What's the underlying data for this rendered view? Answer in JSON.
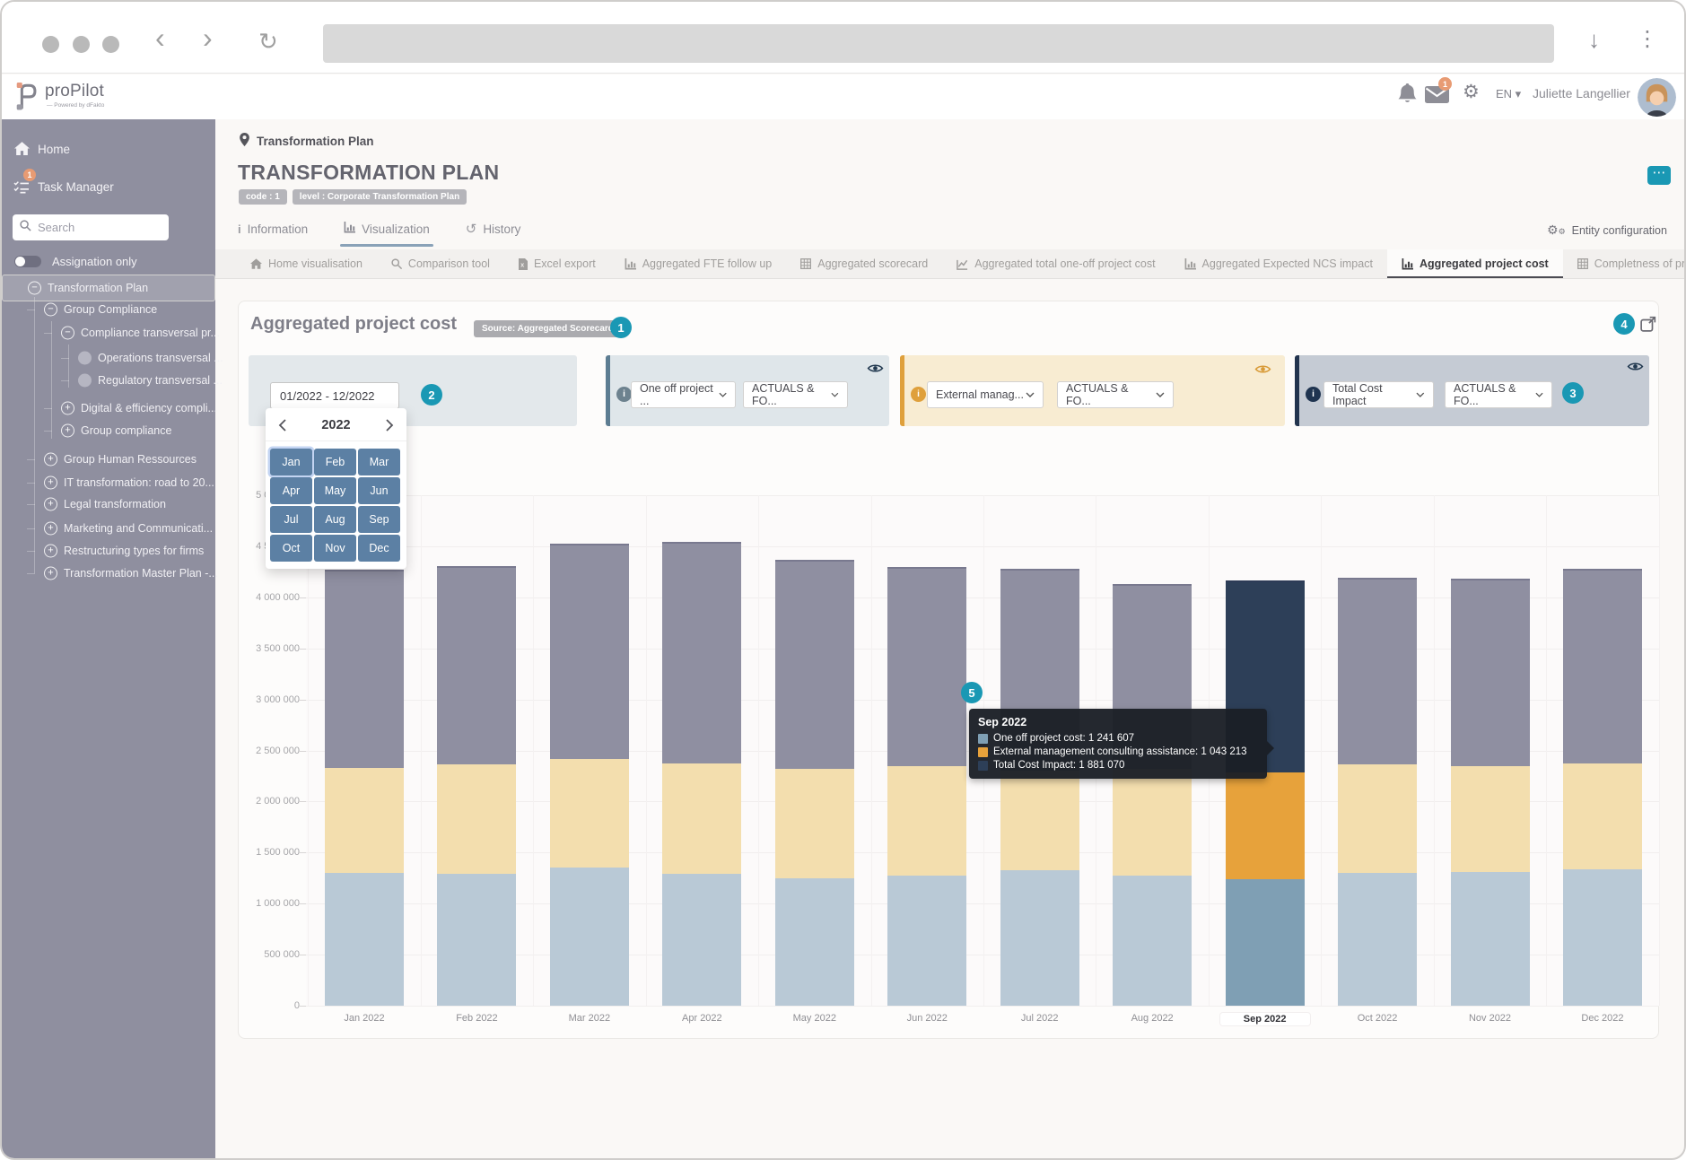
{
  "colors": {
    "accent_teal": "#1a98b4",
    "sidebar_bg": "#8f8f9f",
    "orange_badge": "#e89b73",
    "month_button": "#5c80a4",
    "filter1_border": "#5d7d92",
    "filter1_bg": "#dfe6ea",
    "filter2_border": "#dfa03c",
    "filter2_bg": "#f8ecd2",
    "filter3_border": "#22344e",
    "filter3_bg": "#c5cbd4"
  },
  "header": {
    "brand": "proPilot",
    "brand_sub": "— Powered by dFakto",
    "mail_badge": "1",
    "language": "EN",
    "user_name": "Juliette Langellier"
  },
  "sidebar": {
    "home": "Home",
    "task_manager": "Task Manager",
    "task_badge": "1",
    "search_placeholder": "Search",
    "assignation_toggle": "Assignation only",
    "tree": [
      {
        "label": "Transformation Plan",
        "depth": 0,
        "expander": "minus",
        "selected": true
      },
      {
        "label": "Group Compliance",
        "depth": 1,
        "expander": "minus"
      },
      {
        "label": "Compliance transversal pr...",
        "depth": 2,
        "expander": "minus"
      },
      {
        "label": "Operations transversal ...",
        "depth": 3,
        "expander": "dot"
      },
      {
        "label": "Regulatory transversal ...",
        "depth": 3,
        "expander": "dot"
      },
      {
        "label": "Digital & efficiency compli...",
        "depth": 2,
        "expander": "plus"
      },
      {
        "label": "Group compliance",
        "depth": 2,
        "expander": "plus"
      },
      {
        "label": "Group Human Ressources",
        "depth": 1,
        "expander": "plus"
      },
      {
        "label": "IT transformation: road to 20...",
        "depth": 1,
        "expander": "plus"
      },
      {
        "label": "Legal transformation",
        "depth": 1,
        "expander": "plus"
      },
      {
        "label": "Marketing and Communicati...",
        "depth": 1,
        "expander": "plus"
      },
      {
        "label": "Restructuring types for firms",
        "depth": 1,
        "expander": "plus"
      },
      {
        "label": "Transformation Master Plan -...",
        "depth": 1,
        "expander": "plus"
      }
    ]
  },
  "breadcrumb": "Transformation Plan",
  "page": {
    "title": "TRANSFORMATION PLAN",
    "code_badge": "code : 1",
    "level_badge": "level : Corporate Transformation Plan",
    "options_button": "⋯",
    "tabs": [
      {
        "label": "Information"
      },
      {
        "label": "Visualization",
        "active": true
      },
      {
        "label": "History"
      }
    ],
    "entity_configuration": "Entity configuration"
  },
  "subtabs": [
    {
      "label": "Home visualisation",
      "icon": "home-icon"
    },
    {
      "label": "Comparison tool",
      "icon": "search-icon"
    },
    {
      "label": "Excel export",
      "icon": "excel-file-icon"
    },
    {
      "label": "Aggregated FTE follow up",
      "icon": "bar-chart-icon"
    },
    {
      "label": "Aggregated scorecard",
      "icon": "table-icon"
    },
    {
      "label": "Aggregated total one-off project cost",
      "icon": "line-chart-icon"
    },
    {
      "label": "Aggregated Expected NCS impact",
      "icon": "bar-chart-icon"
    },
    {
      "label": "Aggregated project cost",
      "icon": "bar-chart-icon",
      "active": true
    },
    {
      "label": "Completness of projects",
      "icon": "table-icon"
    }
  ],
  "panel": {
    "title": "Aggregated project cost",
    "source_badge": "Source: Aggregated Scorecard",
    "date_range": "01/2022 - 12/2022",
    "filters": [
      {
        "metric": "One off project ...",
        "scenario": "ACTUALS & FO..."
      },
      {
        "metric": "External manag...",
        "scenario": "ACTUALS & FO..."
      },
      {
        "metric": "Total Cost Impact",
        "scenario": "ACTUALS & FO..."
      }
    ],
    "callouts": [
      "1",
      "2",
      "3",
      "4",
      "5"
    ]
  },
  "monthpicker": {
    "year": "2022",
    "months": [
      "Jan",
      "Feb",
      "Mar",
      "Apr",
      "May",
      "Jun",
      "Jul",
      "Aug",
      "Sep",
      "Oct",
      "Nov",
      "Dec"
    ],
    "focused_month": "Jan"
  },
  "tooltip": {
    "title": "Sep 2022",
    "rows": [
      {
        "label": "One off project cost",
        "value": "1 241 607"
      },
      {
        "label": "External management consulting assistance",
        "value": "1 043 213"
      },
      {
        "label": "Total Cost Impact",
        "value": "1 881 070"
      }
    ]
  },
  "chart_data": {
    "type": "stacked-bar",
    "categories": [
      "Jan 2022",
      "Feb 2022",
      "Mar 2022",
      "Apr 2022",
      "May 2022",
      "Jun 2022",
      "Jul 2022",
      "Aug 2022",
      "Sep 2022",
      "Oct 2022",
      "Nov 2022",
      "Dec 2022"
    ],
    "series": [
      {
        "name": "One off project cost",
        "color": "#7f9fb4",
        "muted_color": "#b9c9d6",
        "values": [
          1300000,
          1290000,
          1350000,
          1290000,
          1250000,
          1270000,
          1330000,
          1270000,
          1241607,
          1300000,
          1310000,
          1340000
        ]
      },
      {
        "name": "External management consulting assistance",
        "color": "#e7a23b",
        "muted_color": "#f3deae",
        "values": [
          1030000,
          1070000,
          1070000,
          1080000,
          1070000,
          1080000,
          970000,
          1050000,
          1043213,
          1060000,
          1040000,
          1030000
        ]
      },
      {
        "name": "Total Cost Impact",
        "color": "#2d3f58",
        "muted_color": "#8f8fa1",
        "values": [
          1940000,
          1950000,
          2110000,
          2170000,
          2050000,
          1950000,
          1980000,
          1810000,
          1881070,
          1830000,
          1830000,
          1910000
        ]
      }
    ],
    "highlighted_category": "Sep 2022",
    "ylim": [
      0,
      5000000
    ],
    "ytick_step": 500000,
    "grid": true,
    "legend": "none"
  }
}
